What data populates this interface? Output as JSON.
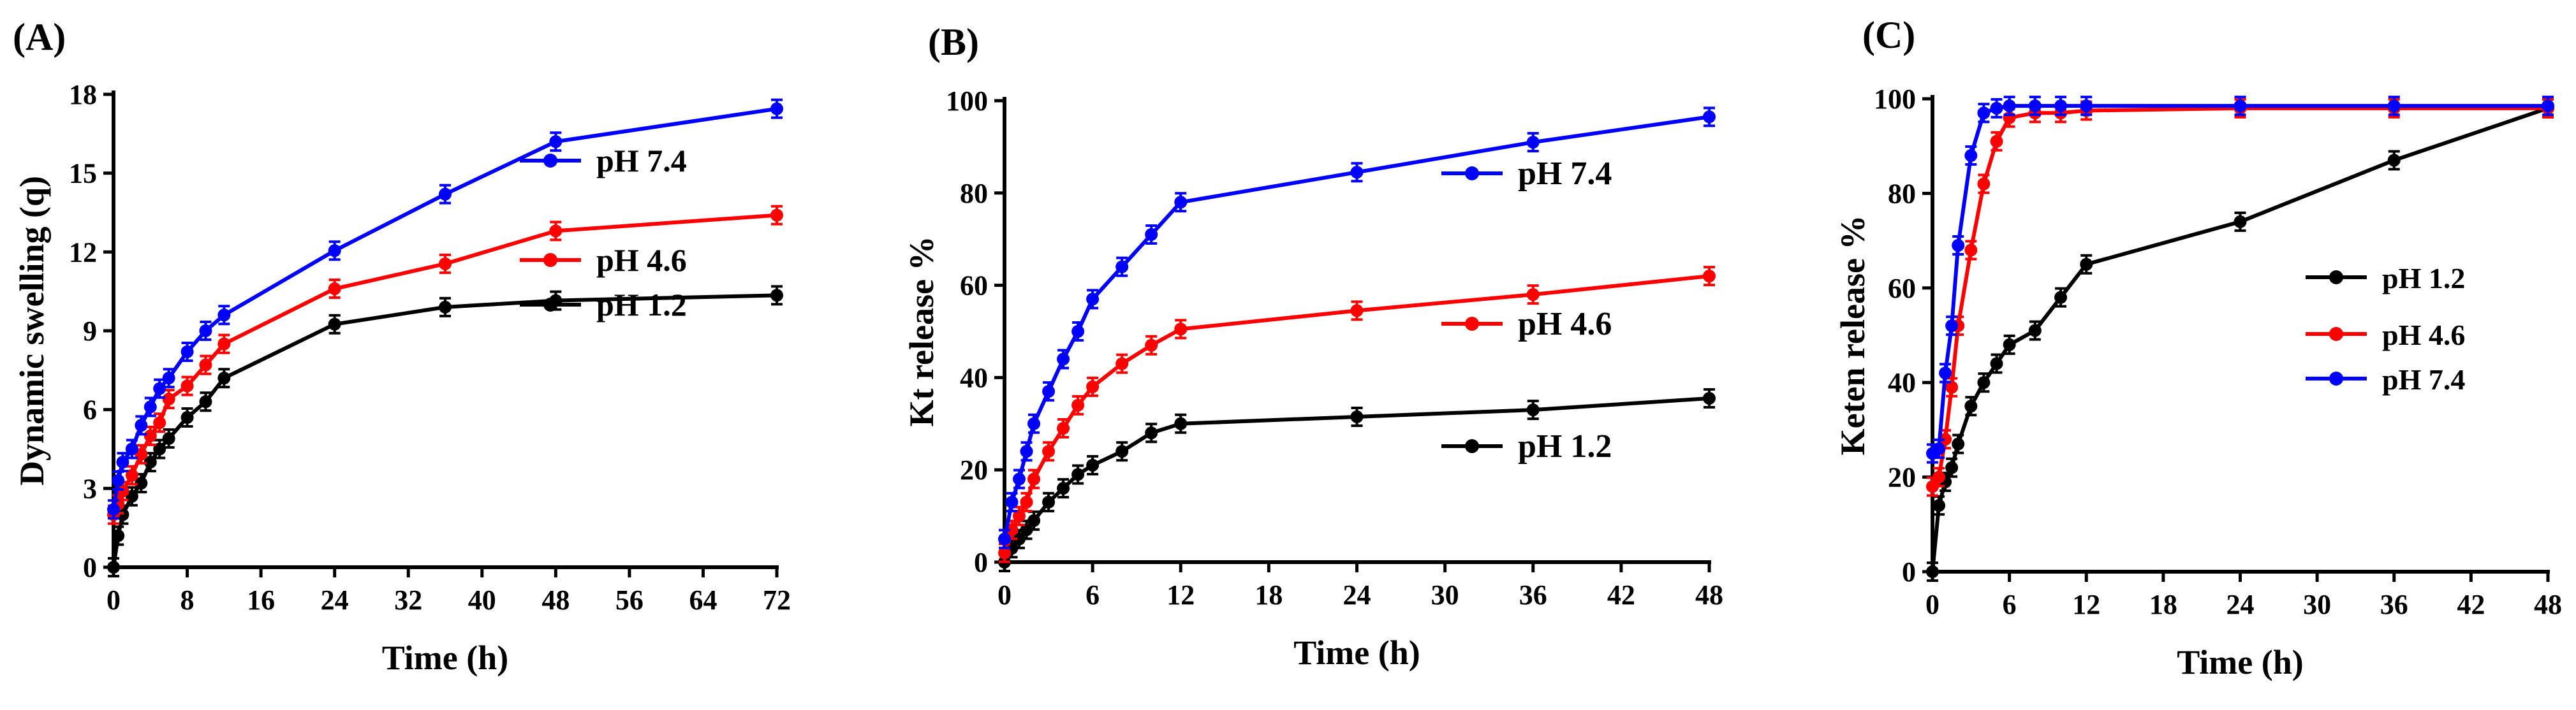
{
  "chart_data": [
    {
      "panel_label": "(A)",
      "type": "line",
      "title": "",
      "xlabel": "Time (h)",
      "ylabel": "Dynamic swelling (q)",
      "xlim": [
        0,
        72
      ],
      "ylim": [
        0,
        18
      ],
      "xticks": [
        0,
        8,
        16,
        24,
        32,
        40,
        48,
        56,
        64,
        72
      ],
      "yticks": [
        0,
        3,
        6,
        9,
        12,
        15,
        18
      ],
      "legend": "right",
      "legend_order": [
        "pH 7.4",
        "pH 4.6",
        "pH 1.2"
      ],
      "series": [
        {
          "name": "pH 1.2",
          "color": "#000000",
          "x": [
            0,
            0.5,
            1,
            2,
            3,
            4,
            5,
            6,
            8,
            10,
            12,
            24,
            36,
            48,
            72
          ],
          "y": [
            0,
            1.2,
            2.0,
            2.7,
            3.2,
            4.0,
            4.5,
            4.9,
            5.7,
            6.3,
            7.2,
            9.25,
            9.9,
            10.15,
            10.35
          ]
        },
        {
          "name": "pH 4.6",
          "color": "#ff0000",
          "x": [
            0,
            0.5,
            1,
            2,
            3,
            4,
            5,
            6,
            8,
            10,
            12,
            24,
            36,
            48,
            72
          ],
          "y": [
            2.0,
            2.4,
            2.9,
            3.5,
            4.3,
            5.0,
            5.5,
            6.4,
            6.9,
            7.7,
            8.5,
            10.6,
            11.55,
            12.8,
            13.4
          ]
        },
        {
          "name": "pH 7.4",
          "color": "#0000ff",
          "x": [
            0,
            0.5,
            1,
            2,
            3,
            4,
            5,
            6,
            8,
            10,
            12,
            24,
            36,
            48,
            72
          ],
          "y": [
            2.2,
            3.3,
            4.0,
            4.5,
            5.4,
            6.1,
            6.8,
            7.2,
            8.2,
            9.0,
            9.6,
            12.05,
            14.2,
            16.2,
            17.45
          ]
        }
      ]
    },
    {
      "panel_label": "(B)",
      "type": "line",
      "title": "",
      "xlabel": "Time (h)",
      "ylabel": "Kt release %",
      "xlim": [
        0,
        48
      ],
      "ylim": [
        0,
        100
      ],
      "xticks": [
        0,
        6,
        12,
        18,
        24,
        30,
        36,
        42,
        48
      ],
      "yticks": [
        0,
        20,
        40,
        60,
        80,
        100
      ],
      "legend": "right",
      "legend_order": [
        "pH 7.4",
        "pH 4.6",
        "pH 1.2"
      ],
      "series": [
        {
          "name": "pH 1.2",
          "color": "#000000",
          "x": [
            0,
            0.5,
            1,
            1.5,
            2,
            3,
            4,
            5,
            6,
            8,
            10,
            12,
            24,
            36,
            48
          ],
          "y": [
            0,
            3,
            5,
            7,
            9,
            13,
            16,
            19,
            21,
            24,
            28,
            30,
            31.5,
            33,
            35.5
          ]
        },
        {
          "name": "pH 4.6",
          "color": "#ff0000",
          "x": [
            0,
            0.5,
            1,
            1.5,
            2,
            3,
            4,
            5,
            6,
            8,
            10,
            12,
            24,
            36,
            48
          ],
          "y": [
            2,
            7,
            10,
            13,
            18,
            24,
            29,
            34,
            38,
            43,
            47,
            50.5,
            54.5,
            58,
            62
          ]
        },
        {
          "name": "pH 7.4",
          "color": "#0000ff",
          "x": [
            0,
            0.5,
            1,
            1.5,
            2,
            3,
            4,
            5,
            6,
            8,
            10,
            12,
            24,
            36,
            48
          ],
          "y": [
            5,
            13,
            18,
            24,
            30,
            37,
            44,
            50,
            57,
            64,
            71,
            78,
            84.5,
            91,
            96.5
          ]
        }
      ]
    },
    {
      "panel_label": "(C)",
      "type": "line",
      "title": "",
      "xlabel": "Time (h)",
      "ylabel": "Keten release %",
      "xlim": [
        0,
        48
      ],
      "ylim": [
        0,
        100
      ],
      "xticks": [
        0,
        6,
        12,
        18,
        24,
        30,
        36,
        42,
        48
      ],
      "yticks": [
        0,
        20,
        40,
        60,
        80,
        100
      ],
      "legend": "right",
      "legend_order": [
        "pH 1.2",
        "pH 4.6",
        "pH 7.4"
      ],
      "series": [
        {
          "name": "pH 1.2",
          "color": "#000000",
          "x": [
            0,
            0.5,
            1,
            1.5,
            2,
            3,
            4,
            5,
            6,
            8,
            10,
            12,
            24,
            36,
            48
          ],
          "y": [
            0,
            14,
            19,
            22,
            27,
            35,
            40,
            44,
            48,
            51,
            58,
            65,
            74,
            87,
            98
          ]
        },
        {
          "name": "pH 4.6",
          "color": "#ff0000",
          "x": [
            0,
            0.5,
            1,
            1.5,
            2,
            3,
            4,
            5,
            6,
            8,
            10,
            12,
            24,
            36,
            48
          ],
          "y": [
            18,
            20,
            28,
            39,
            52,
            68,
            82,
            91,
            96,
            97,
            97,
            97.5,
            98,
            98,
            98
          ]
        },
        {
          "name": "pH 7.4",
          "color": "#0000ff",
          "x": [
            0,
            0.5,
            1,
            1.5,
            2,
            3,
            4,
            5,
            6,
            8,
            10,
            12,
            24,
            36,
            48
          ],
          "y": [
            25,
            26,
            42,
            52,
            69,
            88,
            97,
            98,
            98.5,
            98.5,
            98.5,
            98.5,
            98.5,
            98.5,
            98.5
          ]
        }
      ]
    }
  ]
}
